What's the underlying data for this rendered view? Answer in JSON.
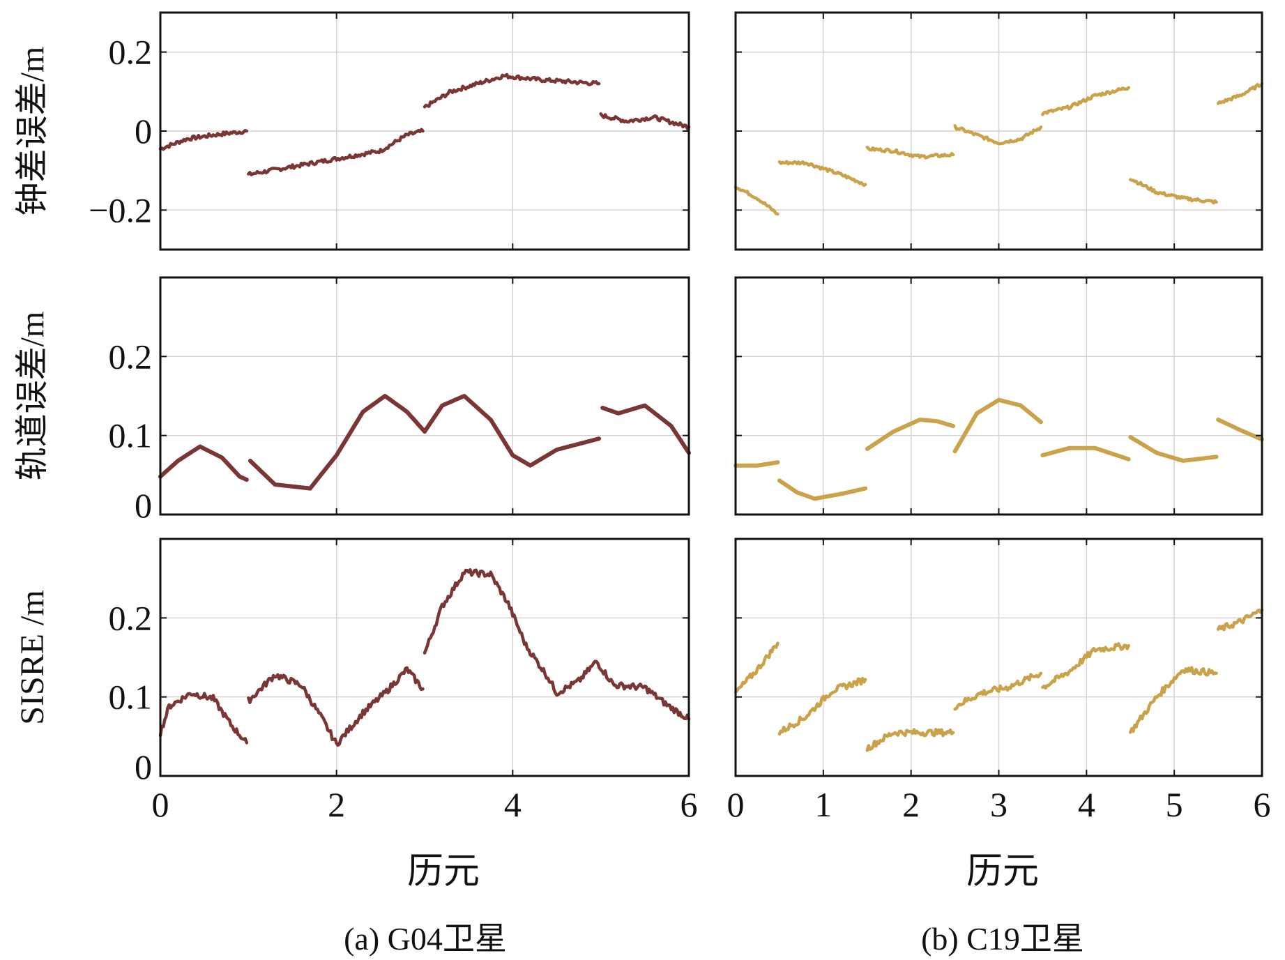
{
  "figure": {
    "left_caption": "(a) G04卫星",
    "right_caption": "(b) C19卫星",
    "left_xlabel": "历元",
    "right_xlabel": "历元"
  },
  "chart_data": [
    {
      "type": "line",
      "id": "g04-clock",
      "ylabel": "钟差误差/m",
      "xlim": [
        0,
        6
      ],
      "ylim": [
        -0.3,
        0.3
      ],
      "yticks": [
        -0.2,
        0,
        0.2
      ],
      "ytick_labels": [
        "−0.2",
        "0",
        "0.2"
      ],
      "xticks": [
        0,
        2,
        4,
        6
      ],
      "grid": true,
      "color": "#7a3535",
      "noise": 0.005,
      "segments": [
        [
          [
            0,
            -0.045
          ],
          [
            0.3,
            -0.02
          ],
          [
            0.6,
            -0.01
          ],
          [
            0.98,
            0
          ]
        ],
        [
          [
            1.0,
            -0.11
          ],
          [
            1.5,
            -0.09
          ],
          [
            2.0,
            -0.07
          ],
          [
            2.5,
            -0.05
          ],
          [
            2.8,
            -0.01
          ],
          [
            2.98,
            0
          ]
        ],
        [
          [
            3.0,
            0.06
          ],
          [
            3.3,
            0.1
          ],
          [
            3.6,
            0.12
          ],
          [
            3.9,
            0.14
          ],
          [
            4.3,
            0.13
          ],
          [
            4.98,
            0.12
          ]
        ],
        [
          [
            5.0,
            0.04
          ],
          [
            5.3,
            0.025
          ],
          [
            5.6,
            0.035
          ],
          [
            6.0,
            0.01
          ]
        ]
      ]
    },
    {
      "type": "line",
      "id": "c19-clock",
      "xlim": [
        0,
        6
      ],
      "ylim": [
        -0.3,
        0.3
      ],
      "yticks": [
        -0.2,
        0,
        0.2
      ],
      "xticks": [
        0,
        1,
        2,
        3,
        4,
        5,
        6
      ],
      "grid": true,
      "color": "#c9a24a",
      "noise": 0.004,
      "segments": [
        [
          [
            0,
            -0.14
          ],
          [
            0.25,
            -0.17
          ],
          [
            0.48,
            -0.21
          ]
        ],
        [
          [
            0.5,
            -0.08
          ],
          [
            0.8,
            -0.08
          ],
          [
            1.2,
            -0.11
          ],
          [
            1.48,
            -0.135
          ]
        ],
        [
          [
            1.5,
            -0.045
          ],
          [
            1.8,
            -0.05
          ],
          [
            2.1,
            -0.065
          ],
          [
            2.48,
            -0.06
          ]
        ],
        [
          [
            2.5,
            0.01
          ],
          [
            2.75,
            -0.01
          ],
          [
            3.0,
            -0.03
          ],
          [
            3.25,
            -0.02
          ],
          [
            3.48,
            0.01
          ]
        ],
        [
          [
            3.5,
            0.045
          ],
          [
            3.8,
            0.06
          ],
          [
            4.1,
            0.09
          ],
          [
            4.48,
            0.11
          ]
        ],
        [
          [
            4.5,
            -0.12
          ],
          [
            4.8,
            -0.155
          ],
          [
            5.1,
            -0.17
          ],
          [
            5.48,
            -0.18
          ]
        ],
        [
          [
            5.5,
            0.07
          ],
          [
            5.75,
            0.09
          ],
          [
            6.0,
            0.12
          ]
        ]
      ]
    },
    {
      "type": "line",
      "id": "g04-orbit",
      "ylabel": "轨道误差/m",
      "xlim": [
        0,
        6
      ],
      "ylim": [
        0,
        0.3
      ],
      "yticks": [
        0,
        0.1,
        0.2
      ],
      "ytick_labels": [
        "0",
        "0.1",
        "0.2"
      ],
      "xticks": [
        0,
        2,
        4,
        6
      ],
      "grid": true,
      "color": "#7a3535",
      "noise": 0,
      "segments": [
        [
          [
            0,
            0.048
          ],
          [
            0.2,
            0.068
          ],
          [
            0.45,
            0.086
          ],
          [
            0.7,
            0.072
          ],
          [
            0.9,
            0.048
          ],
          [
            0.98,
            0.044
          ]
        ],
        [
          [
            1.02,
            0.068
          ],
          [
            1.3,
            0.038
          ],
          [
            1.7,
            0.033
          ],
          [
            2.0,
            0.075
          ],
          [
            2.3,
            0.13
          ],
          [
            2.55,
            0.15
          ],
          [
            2.8,
            0.13
          ],
          [
            3.0,
            0.105
          ]
        ],
        [
          [
            3.0,
            0.105
          ],
          [
            3.2,
            0.138
          ],
          [
            3.45,
            0.15
          ],
          [
            3.75,
            0.12
          ],
          [
            4.0,
            0.075
          ],
          [
            4.2,
            0.062
          ],
          [
            4.5,
            0.082
          ],
          [
            4.98,
            0.096
          ]
        ],
        [
          [
            5.02,
            0.135
          ],
          [
            5.2,
            0.128
          ],
          [
            5.5,
            0.138
          ],
          [
            5.8,
            0.112
          ],
          [
            6.0,
            0.078
          ]
        ]
      ]
    },
    {
      "type": "line",
      "id": "c19-orbit",
      "xlim": [
        0,
        6
      ],
      "ylim": [
        0,
        0.3
      ],
      "yticks": [
        0,
        0.1,
        0.2
      ],
      "xticks": [
        0,
        1,
        2,
        3,
        4,
        5,
        6
      ],
      "grid": true,
      "color": "#c9a24a",
      "noise": 0,
      "segments": [
        [
          [
            0,
            0.062
          ],
          [
            0.25,
            0.062
          ],
          [
            0.48,
            0.066
          ]
        ],
        [
          [
            0.5,
            0.043
          ],
          [
            0.7,
            0.028
          ],
          [
            0.9,
            0.02
          ],
          [
            1.2,
            0.026
          ],
          [
            1.48,
            0.033
          ]
        ],
        [
          [
            1.5,
            0.083
          ],
          [
            1.8,
            0.105
          ],
          [
            2.1,
            0.12
          ],
          [
            2.3,
            0.118
          ],
          [
            2.48,
            0.112
          ]
        ],
        [
          [
            2.5,
            0.08
          ],
          [
            2.75,
            0.128
          ],
          [
            3.0,
            0.145
          ],
          [
            3.25,
            0.138
          ],
          [
            3.48,
            0.117
          ]
        ],
        [
          [
            3.5,
            0.075
          ],
          [
            3.8,
            0.084
          ],
          [
            4.1,
            0.084
          ],
          [
            4.48,
            0.07
          ]
        ],
        [
          [
            4.5,
            0.098
          ],
          [
            4.8,
            0.078
          ],
          [
            5.1,
            0.068
          ],
          [
            5.48,
            0.073
          ]
        ],
        [
          [
            5.5,
            0.12
          ],
          [
            5.75,
            0.107
          ],
          [
            6.0,
            0.095
          ]
        ]
      ]
    },
    {
      "type": "line",
      "id": "g04-sisre",
      "ylabel": "SISRE /m",
      "xlim": [
        0,
        6
      ],
      "ylim": [
        0,
        0.3
      ],
      "yticks": [
        0,
        0.1,
        0.2
      ],
      "ytick_labels": [
        "0",
        "0.1",
        "0.2"
      ],
      "xticks": [
        0,
        2,
        4,
        6
      ],
      "xtick_labels": [
        "0",
        "2",
        "4",
        "6"
      ],
      "grid": true,
      "color": "#7a3535",
      "noise": 0.004,
      "segments": [
        [
          [
            0,
            0.055
          ],
          [
            0.1,
            0.088
          ],
          [
            0.35,
            0.105
          ],
          [
            0.6,
            0.098
          ],
          [
            0.8,
            0.065
          ],
          [
            0.98,
            0.042
          ]
        ],
        [
          [
            1.0,
            0.095
          ],
          [
            1.3,
            0.128
          ],
          [
            1.6,
            0.115
          ],
          [
            1.85,
            0.07
          ],
          [
            2.0,
            0.04
          ],
          [
            2.3,
            0.08
          ],
          [
            2.55,
            0.105
          ],
          [
            2.8,
            0.135
          ],
          [
            2.98,
            0.11
          ]
        ],
        [
          [
            3.0,
            0.155
          ],
          [
            3.2,
            0.215
          ],
          [
            3.45,
            0.258
          ],
          [
            3.75,
            0.255
          ],
          [
            3.95,
            0.218
          ],
          [
            4.15,
            0.165
          ],
          [
            4.4,
            0.125
          ],
          [
            4.5,
            0.105
          ],
          [
            4.75,
            0.12
          ],
          [
            4.95,
            0.145
          ],
          [
            5.15,
            0.115
          ],
          [
            5.5,
            0.112
          ],
          [
            5.75,
            0.09
          ],
          [
            6.0,
            0.072
          ]
        ]
      ]
    },
    {
      "type": "line",
      "id": "c19-sisre",
      "xlim": [
        0,
        6
      ],
      "ylim": [
        0,
        0.3
      ],
      "yticks": [
        0,
        0.1,
        0.2
      ],
      "xticks": [
        0,
        1,
        2,
        3,
        4,
        5,
        6
      ],
      "xtick_labels": [
        "0",
        "1",
        "2",
        "3",
        "4",
        "5",
        "6"
      ],
      "grid": true,
      "color": "#c9a24a",
      "noise": 0.004,
      "segments": [
        [
          [
            0,
            0.105
          ],
          [
            0.25,
            0.135
          ],
          [
            0.48,
            0.168
          ]
        ],
        [
          [
            0.5,
            0.055
          ],
          [
            0.8,
            0.075
          ],
          [
            1.1,
            0.108
          ],
          [
            1.48,
            0.122
          ]
        ],
        [
          [
            1.5,
            0.035
          ],
          [
            1.8,
            0.055
          ],
          [
            2.1,
            0.055
          ],
          [
            2.48,
            0.055
          ]
        ],
        [
          [
            2.5,
            0.088
          ],
          [
            2.8,
            0.105
          ],
          [
            3.1,
            0.112
          ],
          [
            3.48,
            0.13
          ]
        ],
        [
          [
            3.5,
            0.112
          ],
          [
            3.8,
            0.132
          ],
          [
            4.1,
            0.16
          ],
          [
            4.48,
            0.165
          ]
        ],
        [
          [
            4.5,
            0.055
          ],
          [
            4.8,
            0.1
          ],
          [
            5.1,
            0.135
          ],
          [
            5.48,
            0.13
          ]
        ],
        [
          [
            5.5,
            0.185
          ],
          [
            5.75,
            0.195
          ],
          [
            6.0,
            0.21
          ]
        ]
      ]
    }
  ]
}
